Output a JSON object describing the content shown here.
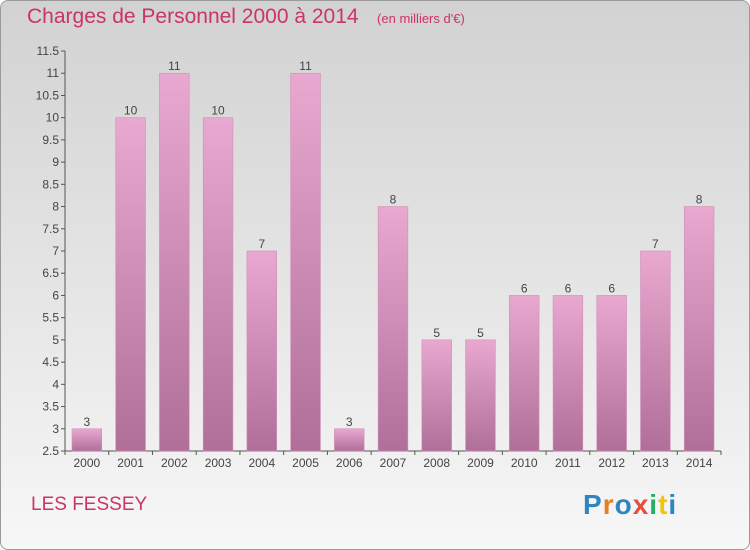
{
  "title": "Charges de Personnel 2000 à 2014",
  "subtitle": "(en milliers d'€)",
  "commune": "LES FESSEY",
  "logo_text": "Proxiti",
  "colors": {
    "title": "#cc3366",
    "bar_light": "#e9a8d0",
    "bar_dark": "#b06f98",
    "logo": [
      "#2e86c1",
      "#e67e22",
      "#2e86c1",
      "#e74c3c",
      "#27ae60",
      "#f1c40f",
      "#2e86c1"
    ]
  },
  "chart_data": {
    "type": "bar",
    "title": "Charges de Personnel 2000 à 2014",
    "subtitle": "(en milliers d'€)",
    "categories": [
      "2000",
      "2001",
      "2002",
      "2003",
      "2004",
      "2005",
      "2006",
      "2007",
      "2008",
      "2009",
      "2010",
      "2011",
      "2012",
      "2013",
      "2014"
    ],
    "values": [
      3,
      10,
      11,
      10,
      7,
      11,
      3,
      8,
      5,
      5,
      6,
      6,
      6,
      7,
      8
    ],
    "data_labels": [
      "3",
      "10",
      "11",
      "10",
      "7",
      "11",
      "3",
      "8",
      "5",
      "5",
      "6",
      "6",
      "6",
      "7",
      "8"
    ],
    "ylim": [
      2.5,
      11.5
    ],
    "yticks": [
      "2.5",
      "3",
      "3.5",
      "4",
      "4.5",
      "5",
      "5.5",
      "6",
      "6.5",
      "7",
      "7.5",
      "8",
      "8.5",
      "9",
      "9.5",
      "10",
      "10.5",
      "11",
      "11.5"
    ],
    "grid": false,
    "legend": "none"
  }
}
